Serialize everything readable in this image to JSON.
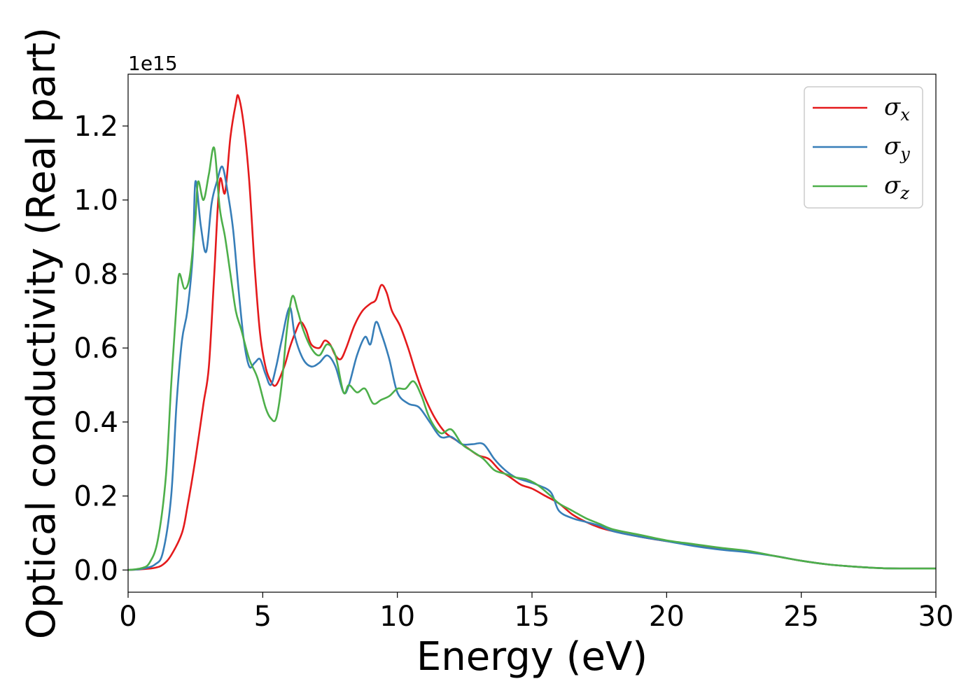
{
  "chart_data": {
    "type": "line",
    "title": "",
    "xlabel": "Energy (eV)",
    "ylabel": "Optical conductivity (Real part)",
    "y_offset_label": "1e15",
    "xlim": [
      0,
      30
    ],
    "ylim": [
      -0.06,
      1.34
    ],
    "xticks": [
      0,
      5,
      10,
      15,
      20,
      25,
      30
    ],
    "xtick_labels": [
      "0",
      "5",
      "10",
      "15",
      "20",
      "25",
      "30"
    ],
    "yticks": [
      0.0,
      0.2,
      0.4,
      0.6,
      0.8,
      1.0,
      1.2
    ],
    "ytick_labels": [
      "0.0",
      "0.2",
      "0.4",
      "0.6",
      "0.8",
      "1.0",
      "1.2"
    ],
    "grid": false,
    "legend_position": "top-right",
    "series": [
      {
        "name": "σ",
        "subscript": "x",
        "color": "#e41a1c",
        "points": [
          [
            0,
            0
          ],
          [
            0.5,
            0.002
          ],
          [
            1.0,
            0.006
          ],
          [
            1.3,
            0.015
          ],
          [
            1.6,
            0.04
          ],
          [
            2.0,
            0.1
          ],
          [
            2.2,
            0.17
          ],
          [
            2.5,
            0.3
          ],
          [
            2.8,
            0.45
          ],
          [
            3.0,
            0.55
          ],
          [
            3.2,
            0.8
          ],
          [
            3.4,
            1.05
          ],
          [
            3.6,
            1.02
          ],
          [
            3.8,
            1.17
          ],
          [
            4.0,
            1.26
          ],
          [
            4.1,
            1.28
          ],
          [
            4.3,
            1.2
          ],
          [
            4.5,
            1.05
          ],
          [
            4.7,
            0.82
          ],
          [
            4.9,
            0.64
          ],
          [
            5.1,
            0.55
          ],
          [
            5.3,
            0.51
          ],
          [
            5.5,
            0.5
          ],
          [
            5.8,
            0.55
          ],
          [
            6.0,
            0.6
          ],
          [
            6.2,
            0.64
          ],
          [
            6.4,
            0.67
          ],
          [
            6.6,
            0.65
          ],
          [
            6.8,
            0.61
          ],
          [
            7.1,
            0.6
          ],
          [
            7.3,
            0.62
          ],
          [
            7.5,
            0.61
          ],
          [
            7.7,
            0.58
          ],
          [
            7.9,
            0.57
          ],
          [
            8.1,
            0.6
          ],
          [
            8.4,
            0.66
          ],
          [
            8.7,
            0.7
          ],
          [
            9.0,
            0.72
          ],
          [
            9.2,
            0.73
          ],
          [
            9.4,
            0.77
          ],
          [
            9.6,
            0.75
          ],
          [
            9.8,
            0.7
          ],
          [
            10.1,
            0.66
          ],
          [
            10.4,
            0.6
          ],
          [
            10.7,
            0.53
          ],
          [
            11.0,
            0.47
          ],
          [
            11.4,
            0.41
          ],
          [
            11.8,
            0.37
          ],
          [
            12.2,
            0.35
          ],
          [
            12.6,
            0.33
          ],
          [
            13.0,
            0.31
          ],
          [
            13.4,
            0.3
          ],
          [
            13.8,
            0.27
          ],
          [
            14.2,
            0.25
          ],
          [
            14.6,
            0.23
          ],
          [
            15.0,
            0.22
          ],
          [
            15.5,
            0.2
          ],
          [
            16.0,
            0.18
          ],
          [
            16.5,
            0.15
          ],
          [
            17.0,
            0.13
          ],
          [
            17.5,
            0.115
          ],
          [
            18.0,
            0.105
          ],
          [
            19.0,
            0.09
          ],
          [
            20.0,
            0.078
          ],
          [
            21.0,
            0.068
          ],
          [
            22.0,
            0.056
          ],
          [
            23.0,
            0.05
          ],
          [
            24.0,
            0.038
          ],
          [
            25.0,
            0.025
          ],
          [
            26.0,
            0.015
          ],
          [
            27.0,
            0.009
          ],
          [
            28.0,
            0.005
          ],
          [
            29.0,
            0.004
          ],
          [
            30.0,
            0.004
          ]
        ]
      },
      {
        "name": "σ",
        "subscript": "y",
        "color": "#377eb8",
        "points": [
          [
            0,
            0
          ],
          [
            0.5,
            0.003
          ],
          [
            1.0,
            0.015
          ],
          [
            1.3,
            0.05
          ],
          [
            1.6,
            0.2
          ],
          [
            1.8,
            0.45
          ],
          [
            2.0,
            0.62
          ],
          [
            2.2,
            0.7
          ],
          [
            2.4,
            0.85
          ],
          [
            2.5,
            1.05
          ],
          [
            2.7,
            0.93
          ],
          [
            2.9,
            0.86
          ],
          [
            3.1,
            0.99
          ],
          [
            3.3,
            1.05
          ],
          [
            3.5,
            1.09
          ],
          [
            3.7,
            1.02
          ],
          [
            3.9,
            0.92
          ],
          [
            4.1,
            0.76
          ],
          [
            4.3,
            0.62
          ],
          [
            4.5,
            0.55
          ],
          [
            4.7,
            0.56
          ],
          [
            4.9,
            0.57
          ],
          [
            5.1,
            0.53
          ],
          [
            5.3,
            0.5
          ],
          [
            5.5,
            0.55
          ],
          [
            5.7,
            0.62
          ],
          [
            6.0,
            0.71
          ],
          [
            6.2,
            0.63
          ],
          [
            6.5,
            0.57
          ],
          [
            6.8,
            0.55
          ],
          [
            7.1,
            0.56
          ],
          [
            7.4,
            0.58
          ],
          [
            7.7,
            0.55
          ],
          [
            8.0,
            0.48
          ],
          [
            8.2,
            0.5
          ],
          [
            8.5,
            0.58
          ],
          [
            8.8,
            0.63
          ],
          [
            9.0,
            0.61
          ],
          [
            9.2,
            0.67
          ],
          [
            9.4,
            0.64
          ],
          [
            9.7,
            0.57
          ],
          [
            10.0,
            0.48
          ],
          [
            10.4,
            0.45
          ],
          [
            10.8,
            0.44
          ],
          [
            11.2,
            0.4
          ],
          [
            11.6,
            0.36
          ],
          [
            12.0,
            0.36
          ],
          [
            12.4,
            0.34
          ],
          [
            12.8,
            0.34
          ],
          [
            13.2,
            0.34
          ],
          [
            13.6,
            0.3
          ],
          [
            14.0,
            0.27
          ],
          [
            14.4,
            0.25
          ],
          [
            14.8,
            0.24
          ],
          [
            15.2,
            0.23
          ],
          [
            15.7,
            0.21
          ],
          [
            16.0,
            0.16
          ],
          [
            16.5,
            0.14
          ],
          [
            17.0,
            0.13
          ],
          [
            17.5,
            0.12
          ],
          [
            18.0,
            0.105
          ],
          [
            19.0,
            0.09
          ],
          [
            20.0,
            0.078
          ],
          [
            21.0,
            0.065
          ],
          [
            22.0,
            0.055
          ],
          [
            23.0,
            0.048
          ],
          [
            24.0,
            0.038
          ],
          [
            25.0,
            0.025
          ],
          [
            26.0,
            0.015
          ],
          [
            27.0,
            0.009
          ],
          [
            28.0,
            0.005
          ],
          [
            29.0,
            0.004
          ],
          [
            30.0,
            0.004
          ]
        ]
      },
      {
        "name": "σ",
        "subscript": "z",
        "color": "#4daf4a",
        "points": [
          [
            0,
            0
          ],
          [
            0.5,
            0.005
          ],
          [
            0.8,
            0.02
          ],
          [
            1.1,
            0.08
          ],
          [
            1.4,
            0.25
          ],
          [
            1.6,
            0.5
          ],
          [
            1.8,
            0.72
          ],
          [
            1.9,
            0.8
          ],
          [
            2.1,
            0.76
          ],
          [
            2.3,
            0.8
          ],
          [
            2.5,
            0.95
          ],
          [
            2.6,
            1.05
          ],
          [
            2.8,
            1.0
          ],
          [
            3.0,
            1.07
          ],
          [
            3.2,
            1.14
          ],
          [
            3.4,
            0.98
          ],
          [
            3.6,
            0.9
          ],
          [
            3.8,
            0.8
          ],
          [
            4.0,
            0.7
          ],
          [
            4.2,
            0.65
          ],
          [
            4.5,
            0.57
          ],
          [
            4.8,
            0.52
          ],
          [
            5.1,
            0.44
          ],
          [
            5.3,
            0.41
          ],
          [
            5.5,
            0.41
          ],
          [
            5.7,
            0.5
          ],
          [
            5.9,
            0.65
          ],
          [
            6.1,
            0.74
          ],
          [
            6.3,
            0.7
          ],
          [
            6.5,
            0.65
          ],
          [
            6.8,
            0.6
          ],
          [
            7.1,
            0.58
          ],
          [
            7.4,
            0.61
          ],
          [
            7.7,
            0.58
          ],
          [
            8.0,
            0.48
          ],
          [
            8.2,
            0.5
          ],
          [
            8.5,
            0.48
          ],
          [
            8.8,
            0.49
          ],
          [
            9.1,
            0.45
          ],
          [
            9.4,
            0.46
          ],
          [
            9.7,
            0.47
          ],
          [
            10.0,
            0.49
          ],
          [
            10.3,
            0.49
          ],
          [
            10.6,
            0.51
          ],
          [
            10.9,
            0.47
          ],
          [
            11.2,
            0.41
          ],
          [
            11.6,
            0.37
          ],
          [
            12.0,
            0.38
          ],
          [
            12.4,
            0.34
          ],
          [
            12.8,
            0.32
          ],
          [
            13.2,
            0.3
          ],
          [
            13.6,
            0.27
          ],
          [
            14.0,
            0.26
          ],
          [
            14.4,
            0.25
          ],
          [
            14.8,
            0.245
          ],
          [
            15.2,
            0.23
          ],
          [
            15.7,
            0.2
          ],
          [
            16.0,
            0.18
          ],
          [
            16.5,
            0.16
          ],
          [
            17.0,
            0.14
          ],
          [
            17.5,
            0.125
          ],
          [
            18.0,
            0.11
          ],
          [
            19.0,
            0.095
          ],
          [
            20.0,
            0.08
          ],
          [
            21.0,
            0.07
          ],
          [
            22.0,
            0.06
          ],
          [
            23.0,
            0.052
          ],
          [
            24.0,
            0.038
          ],
          [
            25.0,
            0.025
          ],
          [
            26.0,
            0.015
          ],
          [
            27.0,
            0.009
          ],
          [
            28.0,
            0.005
          ],
          [
            29.0,
            0.004
          ],
          [
            30.0,
            0.004
          ]
        ]
      }
    ]
  }
}
